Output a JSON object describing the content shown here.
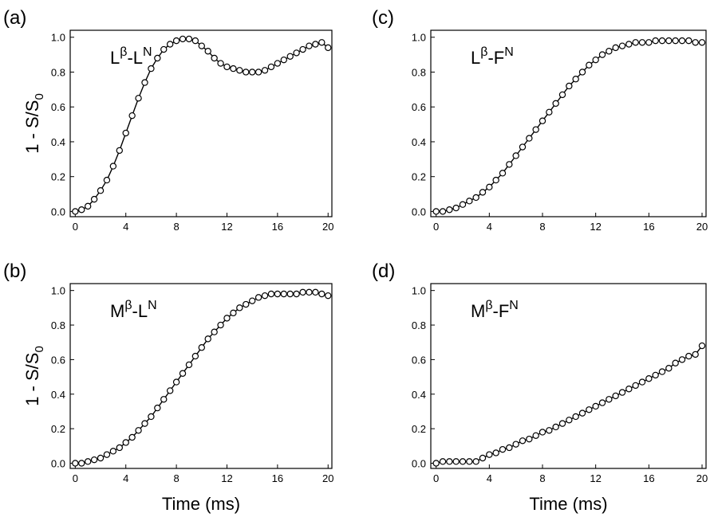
{
  "chart_data": [
    {
      "type": "line",
      "panel": "(a)",
      "annotation": [
        "L",
        "β",
        "-L",
        "N"
      ],
      "ylabel": [
        "1 - S/S",
        "0"
      ],
      "color": "#000000",
      "x": [
        0,
        0.5,
        1,
        1.5,
        2,
        2.5,
        3,
        3.5,
        4,
        4.5,
        5,
        5.5,
        6,
        6.5,
        7,
        7.5,
        8,
        8.5,
        9,
        9.5,
        10,
        10.5,
        11,
        11.5,
        12,
        12.5,
        13,
        13.5,
        14,
        14.5,
        15,
        15.5,
        16,
        16.5,
        17,
        17.5,
        18,
        18.5,
        19,
        19.5,
        20
      ],
      "values": [
        0,
        0.01,
        0.03,
        0.07,
        0.12,
        0.18,
        0.26,
        0.35,
        0.45,
        0.55,
        0.65,
        0.74,
        0.82,
        0.88,
        0.93,
        0.96,
        0.98,
        0.99,
        0.99,
        0.98,
        0.95,
        0.92,
        0.88,
        0.85,
        0.83,
        0.82,
        0.81,
        0.8,
        0.8,
        0.8,
        0.81,
        0.83,
        0.85,
        0.87,
        0.89,
        0.91,
        0.93,
        0.95,
        0.96,
        0.97,
        0.94
      ],
      "xlim": [
        -0.4,
        20.3
      ],
      "ylim": [
        -0.03,
        1.04
      ],
      "xticks": [
        0,
        4,
        8,
        12,
        16,
        20
      ],
      "yticks": [
        {
          "value": 0,
          "label": "0.0"
        },
        {
          "value": 0.2,
          "label": "0.2"
        },
        {
          "value": 0.4,
          "label": "0.4"
        },
        {
          "value": 0.6,
          "label": "0.6"
        },
        {
          "value": 0.8,
          "label": "0.8"
        },
        {
          "value": 1,
          "label": "1.0"
        }
      ]
    },
    {
      "type": "line",
      "panel": "(b)",
      "annotation": [
        "M",
        "β",
        "-L",
        "N"
      ],
      "ylabel": [
        "1 - S/S",
        "0"
      ],
      "xlabel": "Time (ms)",
      "color": "#000000",
      "x": [
        0,
        0.5,
        1,
        1.5,
        2,
        2.5,
        3,
        3.5,
        4,
        4.5,
        5,
        5.5,
        6,
        6.5,
        7,
        7.5,
        8,
        8.5,
        9,
        9.5,
        10,
        10.5,
        11,
        11.5,
        12,
        12.5,
        13,
        13.5,
        14,
        14.5,
        15,
        15.5,
        16,
        16.5,
        17,
        17.5,
        18,
        18.5,
        19,
        19.5,
        20
      ],
      "values": [
        0,
        0,
        0.01,
        0.02,
        0.03,
        0.05,
        0.07,
        0.09,
        0.12,
        0.15,
        0.19,
        0.23,
        0.27,
        0.32,
        0.37,
        0.42,
        0.47,
        0.52,
        0.57,
        0.62,
        0.67,
        0.72,
        0.76,
        0.8,
        0.84,
        0.87,
        0.9,
        0.92,
        0.94,
        0.96,
        0.97,
        0.98,
        0.98,
        0.98,
        0.98,
        0.98,
        0.99,
        0.99,
        0.99,
        0.98,
        0.97
      ],
      "xlim": [
        -0.4,
        20.3
      ],
      "ylim": [
        -0.03,
        1.04
      ],
      "xticks": [
        0,
        4,
        8,
        12,
        16,
        20
      ],
      "yticks": [
        {
          "value": 0,
          "label": "0.0"
        },
        {
          "value": 0.2,
          "label": "0.2"
        },
        {
          "value": 0.4,
          "label": "0.4"
        },
        {
          "value": 0.6,
          "label": "0.6"
        },
        {
          "value": 0.8,
          "label": "0.8"
        },
        {
          "value": 1,
          "label": "1.0"
        }
      ]
    },
    {
      "type": "line",
      "panel": "(c)",
      "annotation": [
        "L",
        "β",
        "-F",
        "N"
      ],
      "color": "#000000",
      "x": [
        0,
        0.5,
        1,
        1.5,
        2,
        2.5,
        3,
        3.5,
        4,
        4.5,
        5,
        5.5,
        6,
        6.5,
        7,
        7.5,
        8,
        8.5,
        9,
        9.5,
        10,
        10.5,
        11,
        11.5,
        12,
        12.5,
        13,
        13.5,
        14,
        14.5,
        15,
        15.5,
        16,
        16.5,
        17,
        17.5,
        18,
        18.5,
        19,
        19.5,
        20
      ],
      "values": [
        0,
        0,
        0.01,
        0.02,
        0.04,
        0.06,
        0.08,
        0.11,
        0.14,
        0.18,
        0.22,
        0.27,
        0.32,
        0.37,
        0.42,
        0.47,
        0.52,
        0.57,
        0.62,
        0.67,
        0.72,
        0.76,
        0.8,
        0.84,
        0.87,
        0.9,
        0.92,
        0.94,
        0.95,
        0.96,
        0.97,
        0.97,
        0.97,
        0.98,
        0.98,
        0.98,
        0.98,
        0.98,
        0.98,
        0.97,
        0.97
      ],
      "xlim": [
        -0.4,
        20.3
      ],
      "ylim": [
        -0.03,
        1.04
      ],
      "xticks": [
        0,
        4,
        8,
        12,
        16,
        20
      ],
      "yticks": [
        {
          "value": 0,
          "label": "0.0"
        },
        {
          "value": 0.2,
          "label": "0.2"
        },
        {
          "value": 0.4,
          "label": "0.4"
        },
        {
          "value": 0.6,
          "label": "0.6"
        },
        {
          "value": 0.8,
          "label": "0.8"
        },
        {
          "value": 1,
          "label": "1.0"
        }
      ]
    },
    {
      "type": "line",
      "panel": "(d)",
      "annotation": [
        "M",
        "β",
        "-F",
        "N"
      ],
      "xlabel": "Time (ms)",
      "color": "#000000",
      "x": [
        0,
        0.5,
        1,
        1.5,
        2,
        2.5,
        3,
        3.5,
        4,
        4.5,
        5,
        5.5,
        6,
        6.5,
        7,
        7.5,
        8,
        8.5,
        9,
        9.5,
        10,
        10.5,
        11,
        11.5,
        12,
        12.5,
        13,
        13.5,
        14,
        14.5,
        15,
        15.5,
        16,
        16.5,
        17,
        17.5,
        18,
        18.5,
        19,
        19.5,
        20
      ],
      "values": [
        0,
        0.01,
        0.01,
        0.01,
        0.01,
        0.01,
        0.01,
        0.03,
        0.05,
        0.06,
        0.08,
        0.09,
        0.11,
        0.13,
        0.14,
        0.16,
        0.18,
        0.19,
        0.21,
        0.23,
        0.25,
        0.27,
        0.29,
        0.31,
        0.33,
        0.35,
        0.37,
        0.39,
        0.41,
        0.43,
        0.45,
        0.47,
        0.49,
        0.51,
        0.53,
        0.55,
        0.58,
        0.6,
        0.62,
        0.63,
        0.68
      ],
      "xlim": [
        -0.4,
        20.3
      ],
      "ylim": [
        -0.03,
        1.04
      ],
      "xticks": [
        0,
        4,
        8,
        12,
        16,
        20
      ],
      "yticks": [
        {
          "value": 0,
          "label": "0.0"
        },
        {
          "value": 0.2,
          "label": "0.2"
        },
        {
          "value": 0.4,
          "label": "0.4"
        },
        {
          "value": 0.6,
          "label": "0.6"
        },
        {
          "value": 0.8,
          "label": "0.8"
        },
        {
          "value": 1,
          "label": "1.0"
        }
      ]
    }
  ]
}
